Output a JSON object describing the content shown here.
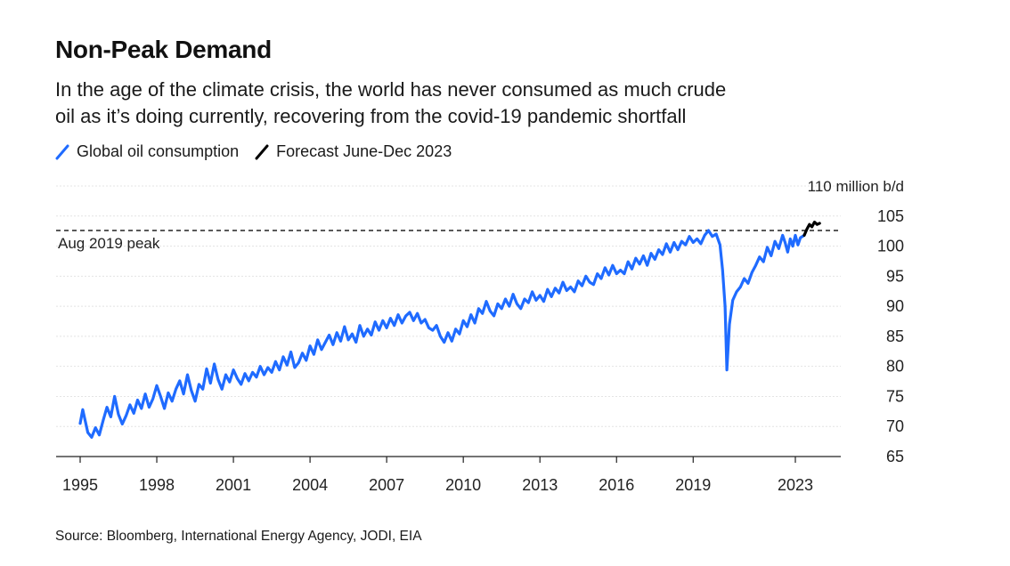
{
  "header": {
    "title": "Non-Peak Demand",
    "subtitle_line1": "In the age of the climate crisis, the world has never consumed as much crude",
    "subtitle_line2": "oil as it’s doing currently, recovering from the covid-19 pandemic shortfall"
  },
  "legend": [
    {
      "label": "Global oil consumption",
      "color": "#1f6bff"
    },
    {
      "label": "Forecast June-Dec 2023",
      "color": "#000000"
    }
  ],
  "footer": {
    "source": "Source: Bloomberg, International Energy Agency, JODI, EIA"
  },
  "chart_data": {
    "type": "line",
    "title": "Non-Peak Demand",
    "ylabel": "110 million b/d",
    "ylim": [
      65,
      110
    ],
    "xlim": [
      1994.7,
      2024.5
    ],
    "x_ticks": [
      "1995",
      "1998",
      "2001",
      "2004",
      "2007",
      "2010",
      "2013",
      "2016",
      "2019",
      "2023"
    ],
    "y_ticks": [
      "110 million b/d",
      "105",
      "100",
      "95",
      "90",
      "85",
      "80",
      "75",
      "70",
      "65"
    ],
    "grid": true,
    "reference_line": {
      "label": "Aug 2019 peak",
      "value": 102.6
    },
    "series": [
      {
        "name": "Global oil consumption",
        "color": "#1f6bff",
        "points": [
          [
            1995.0,
            70.5
          ],
          [
            1995.1,
            72.8
          ],
          [
            1995.3,
            69.0
          ],
          [
            1995.45,
            68.2
          ],
          [
            1995.6,
            69.8
          ],
          [
            1995.75,
            68.6
          ],
          [
            1995.9,
            71.0
          ],
          [
            1996.05,
            73.2
          ],
          [
            1996.2,
            71.6
          ],
          [
            1996.35,
            75.0
          ],
          [
            1996.5,
            72.0
          ],
          [
            1996.65,
            70.4
          ],
          [
            1996.8,
            71.8
          ],
          [
            1996.95,
            73.6
          ],
          [
            1997.1,
            72.2
          ],
          [
            1997.25,
            74.4
          ],
          [
            1997.4,
            73.0
          ],
          [
            1997.55,
            75.4
          ],
          [
            1997.7,
            73.2
          ],
          [
            1997.85,
            74.6
          ],
          [
            1998.0,
            76.8
          ],
          [
            1998.15,
            75.0
          ],
          [
            1998.3,
            73.0
          ],
          [
            1998.45,
            75.6
          ],
          [
            1998.6,
            74.2
          ],
          [
            1998.75,
            76.2
          ],
          [
            1998.9,
            77.6
          ],
          [
            1999.05,
            75.4
          ],
          [
            1999.2,
            78.6
          ],
          [
            1999.35,
            76.0
          ],
          [
            1999.5,
            74.2
          ],
          [
            1999.65,
            77.0
          ],
          [
            1999.8,
            76.2
          ],
          [
            1999.95,
            79.6
          ],
          [
            2000.1,
            77.2
          ],
          [
            2000.25,
            80.4
          ],
          [
            2000.4,
            77.8
          ],
          [
            2000.55,
            76.2
          ],
          [
            2000.7,
            78.6
          ],
          [
            2000.85,
            77.4
          ],
          [
            2001.0,
            79.4
          ],
          [
            2001.15,
            78.0
          ],
          [
            2001.3,
            77.0
          ],
          [
            2001.45,
            78.8
          ],
          [
            2001.6,
            77.6
          ],
          [
            2001.75,
            79.0
          ],
          [
            2001.9,
            78.2
          ],
          [
            2002.05,
            80.0
          ],
          [
            2002.2,
            78.6
          ],
          [
            2002.35,
            79.8
          ],
          [
            2002.5,
            79.0
          ],
          [
            2002.65,
            80.8
          ],
          [
            2002.8,
            79.4
          ],
          [
            2002.95,
            81.6
          ],
          [
            2003.1,
            80.2
          ],
          [
            2003.25,
            82.4
          ],
          [
            2003.4,
            79.8
          ],
          [
            2003.55,
            80.6
          ],
          [
            2003.7,
            82.2
          ],
          [
            2003.85,
            81.0
          ],
          [
            2004.0,
            83.4
          ],
          [
            2004.15,
            82.0
          ],
          [
            2004.3,
            84.4
          ],
          [
            2004.45,
            82.8
          ],
          [
            2004.6,
            84.0
          ],
          [
            2004.75,
            85.2
          ],
          [
            2004.9,
            83.6
          ],
          [
            2005.05,
            85.6
          ],
          [
            2005.2,
            84.2
          ],
          [
            2005.35,
            86.6
          ],
          [
            2005.5,
            84.4
          ],
          [
            2005.65,
            85.4
          ],
          [
            2005.8,
            84.0
          ],
          [
            2005.95,
            86.8
          ],
          [
            2006.1,
            85.0
          ],
          [
            2006.25,
            86.2
          ],
          [
            2006.4,
            85.2
          ],
          [
            2006.55,
            87.4
          ],
          [
            2006.7,
            86.0
          ],
          [
            2006.85,
            87.6
          ],
          [
            2007.0,
            86.4
          ],
          [
            2007.15,
            88.0
          ],
          [
            2007.3,
            86.8
          ],
          [
            2007.45,
            88.6
          ],
          [
            2007.6,
            87.2
          ],
          [
            2007.75,
            88.4
          ],
          [
            2007.9,
            89.0
          ],
          [
            2008.05,
            87.6
          ],
          [
            2008.2,
            88.8
          ],
          [
            2008.35,
            87.2
          ],
          [
            2008.5,
            87.8
          ],
          [
            2008.65,
            86.4
          ],
          [
            2008.8,
            86.0
          ],
          [
            2008.95,
            86.8
          ],
          [
            2009.1,
            85.0
          ],
          [
            2009.25,
            84.0
          ],
          [
            2009.4,
            85.6
          ],
          [
            2009.55,
            84.2
          ],
          [
            2009.7,
            86.2
          ],
          [
            2009.85,
            85.4
          ],
          [
            2010.0,
            87.6
          ],
          [
            2010.15,
            86.6
          ],
          [
            2010.3,
            88.6
          ],
          [
            2010.45,
            87.2
          ],
          [
            2010.6,
            89.6
          ],
          [
            2010.75,
            88.8
          ],
          [
            2010.9,
            90.8
          ],
          [
            2011.05,
            89.2
          ],
          [
            2011.2,
            88.4
          ],
          [
            2011.35,
            90.4
          ],
          [
            2011.5,
            89.6
          ],
          [
            2011.65,
            91.2
          ],
          [
            2011.8,
            90.0
          ],
          [
            2011.95,
            92.0
          ],
          [
            2012.1,
            90.4
          ],
          [
            2012.25,
            89.6
          ],
          [
            2012.4,
            91.2
          ],
          [
            2012.55,
            90.6
          ],
          [
            2012.7,
            92.4
          ],
          [
            2012.85,
            91.0
          ],
          [
            2013.0,
            91.8
          ],
          [
            2013.15,
            90.8
          ],
          [
            2013.3,
            92.8
          ],
          [
            2013.45,
            91.6
          ],
          [
            2013.6,
            93.0
          ],
          [
            2013.75,
            92.2
          ],
          [
            2013.9,
            94.0
          ],
          [
            2014.05,
            92.6
          ],
          [
            2014.2,
            93.2
          ],
          [
            2014.35,
            92.4
          ],
          [
            2014.5,
            94.2
          ],
          [
            2014.65,
            93.4
          ],
          [
            2014.8,
            95.0
          ],
          [
            2014.95,
            94.0
          ],
          [
            2015.1,
            93.6
          ],
          [
            2015.25,
            95.4
          ],
          [
            2015.4,
            94.6
          ],
          [
            2015.55,
            96.4
          ],
          [
            2015.7,
            95.2
          ],
          [
            2015.85,
            96.8
          ],
          [
            2016.0,
            95.4
          ],
          [
            2016.15,
            96.0
          ],
          [
            2016.3,
            95.4
          ],
          [
            2016.45,
            97.4
          ],
          [
            2016.6,
            96.2
          ],
          [
            2016.75,
            98.0
          ],
          [
            2016.9,
            97.0
          ],
          [
            2017.05,
            98.4
          ],
          [
            2017.2,
            96.8
          ],
          [
            2017.35,
            98.8
          ],
          [
            2017.5,
            97.8
          ],
          [
            2017.65,
            99.4
          ],
          [
            2017.8,
            98.6
          ],
          [
            2017.95,
            100.4
          ],
          [
            2018.1,
            99.0
          ],
          [
            2018.25,
            100.6
          ],
          [
            2018.4,
            99.4
          ],
          [
            2018.55,
            100.8
          ],
          [
            2018.7,
            100.2
          ],
          [
            2018.85,
            101.6
          ],
          [
            2019.0,
            100.6
          ],
          [
            2019.15,
            101.2
          ],
          [
            2019.3,
            100.4
          ],
          [
            2019.45,
            101.8
          ],
          [
            2019.6,
            102.6
          ],
          [
            2019.75,
            101.6
          ],
          [
            2019.9,
            102.0
          ],
          [
            2020.05,
            100.2
          ],
          [
            2020.15,
            96.0
          ],
          [
            2020.25,
            90.0
          ],
          [
            2020.32,
            79.4
          ],
          [
            2020.42,
            87.0
          ],
          [
            2020.55,
            91.0
          ],
          [
            2020.7,
            92.4
          ],
          [
            2020.85,
            93.2
          ],
          [
            2021.0,
            94.6
          ],
          [
            2021.15,
            93.8
          ],
          [
            2021.3,
            95.6
          ],
          [
            2021.45,
            96.8
          ],
          [
            2021.6,
            98.2
          ],
          [
            2021.75,
            97.4
          ],
          [
            2021.9,
            99.8
          ],
          [
            2022.05,
            98.4
          ],
          [
            2022.2,
            100.8
          ],
          [
            2022.35,
            99.6
          ],
          [
            2022.5,
            101.8
          ],
          [
            2022.6,
            100.6
          ],
          [
            2022.7,
            99.0
          ],
          [
            2022.8,
            101.2
          ],
          [
            2022.9,
            100.0
          ],
          [
            2023.0,
            101.8
          ],
          [
            2023.1,
            100.2
          ],
          [
            2023.2,
            101.4
          ],
          [
            2023.35,
            101.8
          ]
        ]
      },
      {
        "name": "Forecast June-Dec 2023",
        "color": "#000000",
        "points": [
          [
            2023.35,
            101.8
          ],
          [
            2023.45,
            102.8
          ],
          [
            2023.55,
            103.6
          ],
          [
            2023.65,
            103.2
          ],
          [
            2023.75,
            104.0
          ],
          [
            2023.85,
            103.6
          ],
          [
            2023.95,
            103.8
          ]
        ]
      }
    ]
  }
}
